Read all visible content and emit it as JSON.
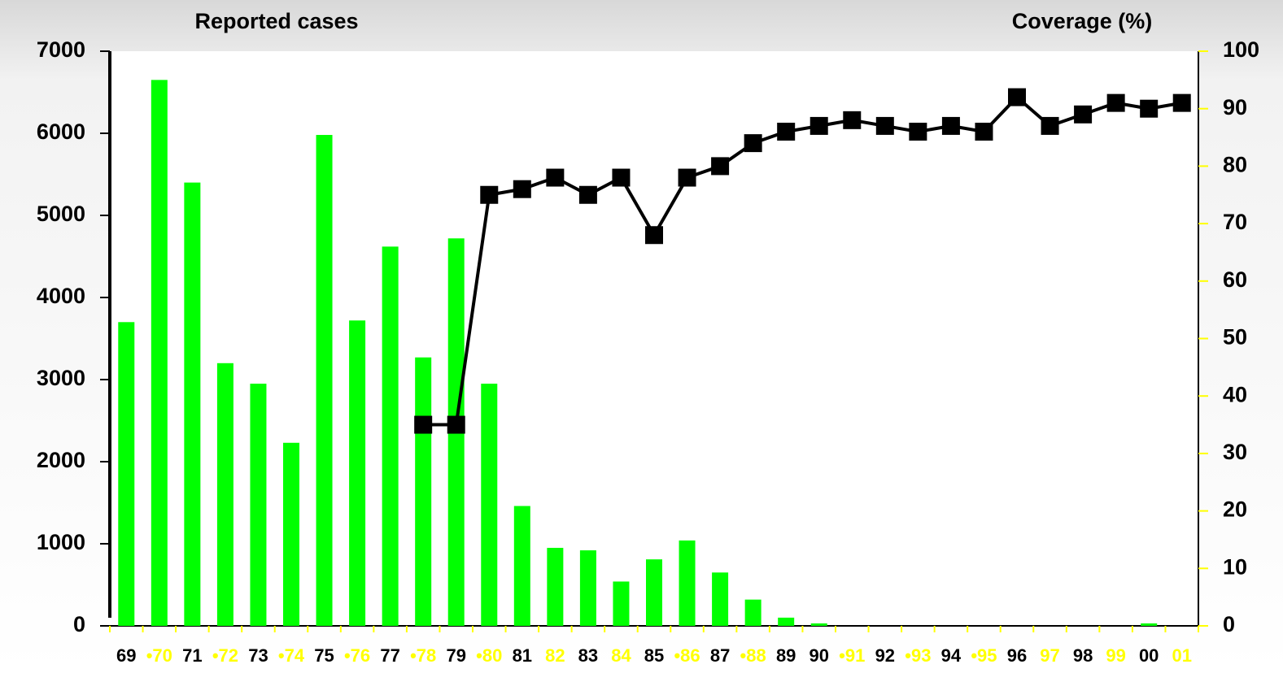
{
  "chart_data": {
    "type": "bar_line",
    "ylabel": "Reported cases",
    "y2label": "Coverage (%)",
    "categories": [
      "69",
      "•70",
      "71",
      "•72",
      "73",
      "•74",
      "75",
      "•76",
      "77",
      "•78",
      "79",
      "•80",
      "81",
      "82",
      "83",
      "84",
      "85",
      "•86",
      "87",
      "•88",
      "89",
      "90",
      "•91",
      "92",
      "•93",
      "94",
      "•95",
      "96",
      "97",
      "98",
      "99",
      "00",
      "01"
    ],
    "category_colors": [
      "#000000",
      "#ffff00",
      "#000000",
      "#ffff00",
      "#000000",
      "#ffff00",
      "#000000",
      "#ffff00",
      "#000000",
      "#ffff00",
      "#000000",
      "#ffff00",
      "#000000",
      "#ffff00",
      "#000000",
      "#ffff00",
      "#000000",
      "#ffff00",
      "#000000",
      "#ffff00",
      "#000000",
      "#000000",
      "#ffff00",
      "#000000",
      "#ffff00",
      "#000000",
      "#ffff00",
      "#000000",
      "#ffff00",
      "#000000",
      "#ffff00",
      "#000000",
      "#ffff00"
    ],
    "series": [
      {
        "name": "Reported cases",
        "color": "#00ff00",
        "kind": "bar",
        "values": [
          3700,
          6650,
          5400,
          3200,
          2950,
          2230,
          5980,
          3720,
          4620,
          3270,
          4720,
          2950,
          1460,
          950,
          920,
          540,
          810,
          1040,
          650,
          320,
          100,
          30,
          0,
          0,
          0,
          0,
          0,
          0,
          0,
          0,
          0,
          30,
          0
        ]
      },
      {
        "name": "Coverage (%)",
        "color": "#000000",
        "kind": "line",
        "axis": "y2",
        "values": [
          null,
          null,
          null,
          null,
          null,
          null,
          null,
          null,
          null,
          35,
          35,
          75,
          76,
          78,
          75,
          78,
          68,
          78,
          80,
          84,
          86,
          87,
          88,
          87,
          86,
          87,
          86,
          92,
          87,
          89,
          91,
          90,
          91
        ]
      }
    ],
    "ylim": [
      0,
      7000
    ],
    "yticks": [
      0,
      1000,
      2000,
      3000,
      4000,
      5000,
      6000,
      7000
    ],
    "y2lim": [
      0,
      100
    ],
    "y2ticks": [
      0,
      10,
      20,
      30,
      40,
      50,
      60,
      70,
      80,
      90,
      100
    ]
  }
}
